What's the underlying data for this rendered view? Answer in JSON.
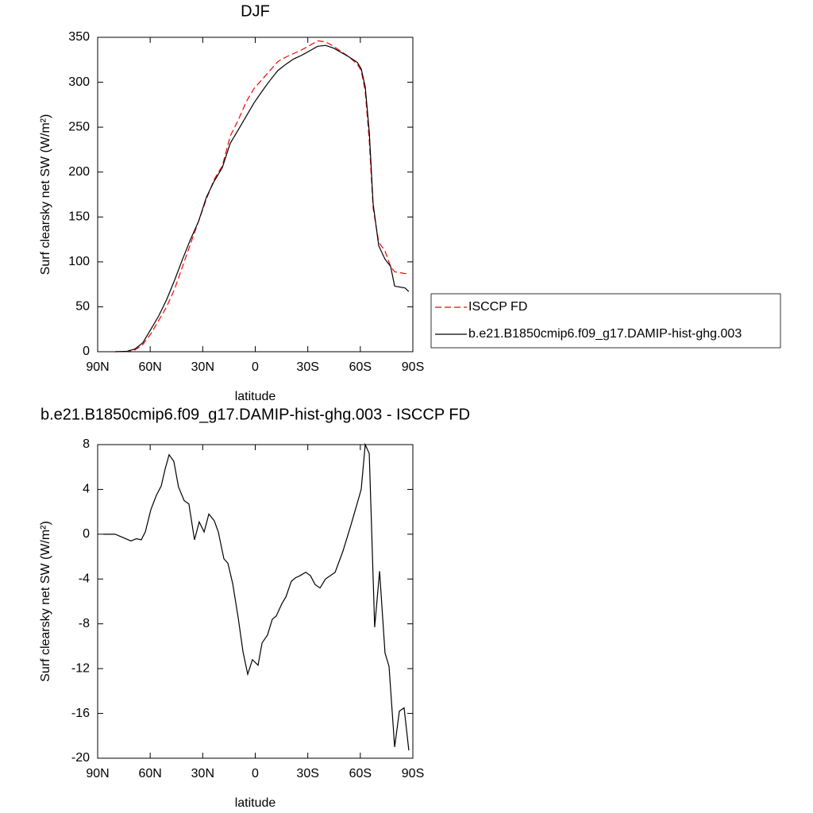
{
  "chart_data": [
    {
      "type": "line",
      "title": "DJF",
      "x_label": "latitude",
      "y_label": "Surf clearsky net SW (W/m²)",
      "x": [
        80.0,
        73.2,
        68.7,
        64.2,
        59.6,
        55.1,
        50.6,
        46.0,
        41.5,
        37.0,
        32.4,
        27.9,
        23.4,
        18.8,
        14.3,
        9.7,
        5.2,
        0.7,
        -3.9,
        -8.4,
        -12.9,
        -17.5,
        -22.0,
        -26.5,
        -31.1,
        -35.6,
        -40.1,
        -44.7,
        -49.2,
        -53.7,
        -58.3,
        -60.5,
        -62.8,
        -65.1,
        -67.3,
        -70.5,
        -74.1,
        -77.3,
        -79.6,
        -85.5,
        -87.7
      ],
      "series": [
        {
          "name": "ISCCP FD",
          "color": "#ff0000",
          "style": "dashed",
          "values": [
            0,
            0.3,
            2,
            8,
            20,
            35,
            50,
            70,
            95,
            120,
            145,
            170,
            192,
            207,
            240,
            258,
            278,
            293,
            303,
            313,
            323,
            328,
            332,
            336,
            341,
            346,
            345,
            340,
            334,
            328,
            320,
            313,
            290,
            235,
            160,
            122,
            112,
            95,
            89,
            87,
            87
          ]
        },
        {
          "name": "b.e21.B1850cmip6.f09_g17.DAMIP-hist-ghg.003",
          "color": "#000000",
          "style": "solid",
          "values": [
            0,
            0.5,
            3,
            10,
            25,
            40,
            58,
            80,
            103,
            125,
            145,
            172,
            190,
            205,
            232,
            247,
            262,
            277,
            290,
            302,
            313,
            320,
            326,
            330,
            335,
            340,
            341,
            338,
            333,
            328,
            322,
            315,
            295,
            245,
            165,
            118,
            103,
            95,
            73,
            71,
            67
          ]
        }
      ],
      "xlim": [
        90,
        -90
      ],
      "xticks": [
        {
          "value": 90,
          "label": "90N"
        },
        {
          "value": 60,
          "label": "60N"
        },
        {
          "value": 30,
          "label": "30N"
        },
        0,
        {
          "value": -30,
          "label": "30S"
        },
        {
          "value": -60,
          "label": "60S"
        },
        {
          "value": -90,
          "label": "90S"
        }
      ],
      "ylim": [
        0,
        350
      ],
      "yticks": [
        0,
        50,
        100,
        150,
        200,
        250,
        300,
        350
      ],
      "legend": "right"
    },
    {
      "type": "line",
      "title": "b.e21.B1850cmip6.f09_g17.DAMIP-hist-ghg.003 - ISCCP FD",
      "x_label": "latitude",
      "y_label": "Surf clearsky net SW (W/m²)",
      "x": [
        86.8,
        80.0,
        75.5,
        71.0,
        67.8,
        65.1,
        62.8,
        59.6,
        56.4,
        53.7,
        51.5,
        49.2,
        46.5,
        43.8,
        40.6,
        37.9,
        34.7,
        32.0,
        29.2,
        26.5,
        23.4,
        21.1,
        17.9,
        15.6,
        12.9,
        9.7,
        7.0,
        4.3,
        1.6,
        -1.6,
        -3.9,
        -7.0,
        -9.7,
        -12.0,
        -15.2,
        -17.5,
        -20.6,
        -22.9,
        -25.6,
        -28.8,
        -31.5,
        -34.2,
        -37.0,
        -40.1,
        -45.6,
        -50.1,
        -54.6,
        -58.3,
        -60.5,
        -62.8,
        -65.1,
        -68.2,
        -71.0,
        -74.1,
        -76.4,
        -79.6,
        -82.3,
        -85.0,
        -87.7
      ],
      "series": [
        {
          "color": "#000000",
          "style": "solid",
          "values": [
            0,
            0,
            -0.3,
            -0.6,
            -0.4,
            -0.5,
            0.2,
            2.2,
            3.5,
            4.3,
            5.8,
            7.1,
            6.5,
            4.2,
            3,
            2.7,
            -0.5,
            1.1,
            0.2,
            1.8,
            1.2,
            0.2,
            -2.2,
            -2.6,
            -4.4,
            -7.5,
            -10.5,
            -12.5,
            -11.2,
            -11.7,
            -9.7,
            -9,
            -7.6,
            -7.3,
            -6.2,
            -5.6,
            -4.2,
            -3.9,
            -3.7,
            -3.4,
            -3.7,
            -4.5,
            -4.8,
            -4,
            -3.4,
            -1.5,
            0.8,
            2.8,
            4,
            8,
            7.2,
            -8.3,
            -3.3,
            -10.6,
            -11.8,
            -19,
            -15.8,
            -15.5,
            -19.3
          ]
        }
      ],
      "xlim": [
        90,
        -90
      ],
      "xticks": [
        {
          "value": 90,
          "label": "90N"
        },
        {
          "value": 60,
          "label": "60N"
        },
        {
          "value": 30,
          "label": "30N"
        },
        0,
        {
          "value": -30,
          "label": "30S"
        },
        {
          "value": -60,
          "label": "60S"
        },
        {
          "value": -90,
          "label": "90S"
        }
      ],
      "ylim": [
        -20,
        8
      ],
      "yticks": [
        -20,
        -16,
        -12,
        -8,
        -4,
        0,
        4,
        8
      ]
    }
  ]
}
